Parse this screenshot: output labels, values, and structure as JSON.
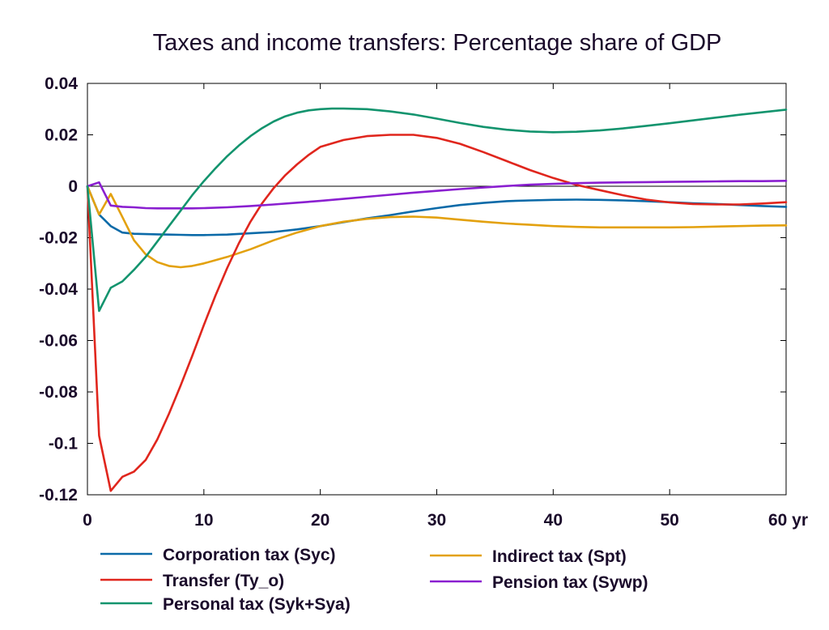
{
  "chart_data": {
    "type": "line",
    "title": "Taxes and income transfers: Percentage share of GDP",
    "xlabel": "",
    "ylabel": "",
    "xlim": [
      0,
      60
    ],
    "ylim": [
      -0.12,
      0.04
    ],
    "x_ticks": [
      0,
      10,
      20,
      30,
      40,
      50,
      60
    ],
    "x_tick_labels": [
      "0",
      "10",
      "20",
      "30",
      "40",
      "50",
      "60 yr"
    ],
    "y_ticks": [
      0.04,
      0.02,
      0,
      -0.02,
      -0.04,
      -0.06,
      -0.08,
      -0.1,
      -0.12
    ],
    "y_tick_labels": [
      "0.04",
      "0.02",
      "0",
      "-0.02",
      "-0.04",
      "-0.06",
      "-0.08",
      "-0.1",
      "-0.12"
    ],
    "zero_line": true,
    "grid": false,
    "legend_position": "bottom",
    "series": [
      {
        "name": "Corporation tax (Syc)",
        "color": "#0b6aa8",
        "x": [
          0,
          1,
          2,
          3,
          4,
          5,
          6,
          7,
          8,
          9,
          10,
          12,
          14,
          16,
          18,
          20,
          22,
          24,
          26,
          28,
          30,
          32,
          34,
          36,
          38,
          40,
          42,
          44,
          46,
          48,
          50,
          52,
          54,
          56,
          58,
          60
        ],
        "y": [
          0,
          -0.011,
          -0.0155,
          -0.018,
          -0.0185,
          -0.0186,
          -0.0187,
          -0.0188,
          -0.0189,
          -0.019,
          -0.019,
          -0.0188,
          -0.0183,
          -0.0178,
          -0.0168,
          -0.0155,
          -0.014,
          -0.0125,
          -0.0112,
          -0.0098,
          -0.0085,
          -0.0073,
          -0.0065,
          -0.0058,
          -0.0055,
          -0.0053,
          -0.0052,
          -0.0053,
          -0.0055,
          -0.0058,
          -0.0062,
          -0.0066,
          -0.0069,
          -0.0073,
          -0.0077,
          -0.008
        ]
      },
      {
        "name": "Indirect tax (Spt)",
        "color": "#e3a10e",
        "x": [
          0,
          1,
          2,
          3,
          4,
          5,
          6,
          7,
          8,
          9,
          10,
          12,
          14,
          16,
          18,
          20,
          22,
          24,
          26,
          28,
          30,
          32,
          34,
          36,
          38,
          40,
          42,
          44,
          46,
          48,
          50,
          52,
          54,
          56,
          58,
          60
        ],
        "y": [
          0,
          -0.011,
          -0.003,
          -0.012,
          -0.021,
          -0.0265,
          -0.0295,
          -0.031,
          -0.0315,
          -0.031,
          -0.03,
          -0.0275,
          -0.0245,
          -0.021,
          -0.018,
          -0.0155,
          -0.0138,
          -0.0127,
          -0.012,
          -0.0118,
          -0.0122,
          -0.013,
          -0.0138,
          -0.0145,
          -0.015,
          -0.0155,
          -0.0158,
          -0.016,
          -0.016,
          -0.016,
          -0.016,
          -0.0159,
          -0.0157,
          -0.0155,
          -0.0153,
          -0.0152
        ]
      },
      {
        "name": "Transfer (Ty_o)",
        "color": "#e0261d",
        "x": [
          0,
          1,
          2,
          3,
          4,
          5,
          6,
          7,
          8,
          9,
          10,
          11,
          12,
          13,
          14,
          15,
          16,
          17,
          18,
          19,
          20,
          22,
          24,
          26,
          28,
          30,
          32,
          34,
          36,
          38,
          40,
          42,
          44,
          46,
          48,
          50,
          52,
          54,
          56,
          58,
          60
        ],
        "y": [
          0,
          -0.097,
          -0.1185,
          -0.113,
          -0.111,
          -0.1065,
          -0.0985,
          -0.0885,
          -0.0775,
          -0.066,
          -0.054,
          -0.0425,
          -0.0318,
          -0.0222,
          -0.0138,
          -0.0066,
          -0.0007,
          0.0043,
          0.0085,
          0.0122,
          0.0153,
          0.018,
          0.0195,
          0.02,
          0.02,
          0.0188,
          0.0165,
          0.0133,
          0.0098,
          0.0063,
          0.0032,
          0.0005,
          -0.0015,
          -0.0035,
          -0.0052,
          -0.0063,
          -0.0069,
          -0.0071,
          -0.0071,
          -0.0067,
          -0.0062
        ]
      },
      {
        "name": "Pension tax (Sywp)",
        "color": "#8a1fd0",
        "x": [
          0,
          1,
          2,
          3,
          4,
          5,
          6,
          7,
          8,
          9,
          10,
          12,
          14,
          16,
          18,
          20,
          22,
          24,
          26,
          28,
          30,
          32,
          34,
          36,
          38,
          40,
          42,
          44,
          46,
          48,
          50,
          52,
          54,
          56,
          58,
          60
        ],
        "y": [
          0,
          0.0015,
          -0.0075,
          -0.008,
          -0.0082,
          -0.0085,
          -0.0086,
          -0.0086,
          -0.0086,
          -0.0086,
          -0.0085,
          -0.0082,
          -0.0077,
          -0.0071,
          -0.0064,
          -0.0057,
          -0.0049,
          -0.0041,
          -0.0033,
          -0.0025,
          -0.0018,
          -0.0011,
          -0.0005,
          0.0001,
          0.0006,
          0.0009,
          0.0012,
          0.0014,
          0.0015,
          0.0016,
          0.0017,
          0.0018,
          0.0019,
          0.002,
          0.002,
          0.0021
        ]
      },
      {
        "name": "Personal tax (Syk+Sya)",
        "color": "#13946e",
        "x": [
          0,
          1,
          2,
          3,
          4,
          5,
          6,
          7,
          8,
          9,
          10,
          11,
          12,
          13,
          14,
          15,
          16,
          17,
          18,
          19,
          20,
          21,
          22,
          24,
          26,
          28,
          30,
          32,
          34,
          36,
          38,
          40,
          42,
          44,
          46,
          48,
          50,
          52,
          54,
          56,
          58,
          60
        ],
        "y": [
          0,
          -0.0485,
          -0.0395,
          -0.037,
          -0.0325,
          -0.0275,
          -0.0215,
          -0.0155,
          -0.0095,
          -0.0035,
          0.002,
          0.007,
          0.0117,
          0.0158,
          0.0195,
          0.0226,
          0.0252,
          0.0272,
          0.0286,
          0.0295,
          0.03,
          0.0302,
          0.0302,
          0.03,
          0.0291,
          0.0279,
          0.0263,
          0.0246,
          0.0231,
          0.022,
          0.0213,
          0.021,
          0.0212,
          0.0217,
          0.0225,
          0.0235,
          0.0245,
          0.0256,
          0.0267,
          0.0278,
          0.0288,
          0.0298
        ]
      }
    ],
    "legend": [
      {
        "label": "Corporation tax (Syc)",
        "color": "#0b6aa8",
        "col": 0,
        "row": 0
      },
      {
        "label": "Transfer (Ty_o)",
        "color": "#e0261d",
        "col": 0,
        "row": 1
      },
      {
        "label": "Personal tax (Syk+Sya)",
        "color": "#13946e",
        "col": 0,
        "row": 2
      },
      {
        "label": "Indirect tax (Spt)",
        "color": "#e3a10e",
        "col": 1,
        "row": 0
      },
      {
        "label": "Pension tax (Sywp)",
        "color": "#8a1fd0",
        "col": 1,
        "row": 1
      }
    ]
  }
}
